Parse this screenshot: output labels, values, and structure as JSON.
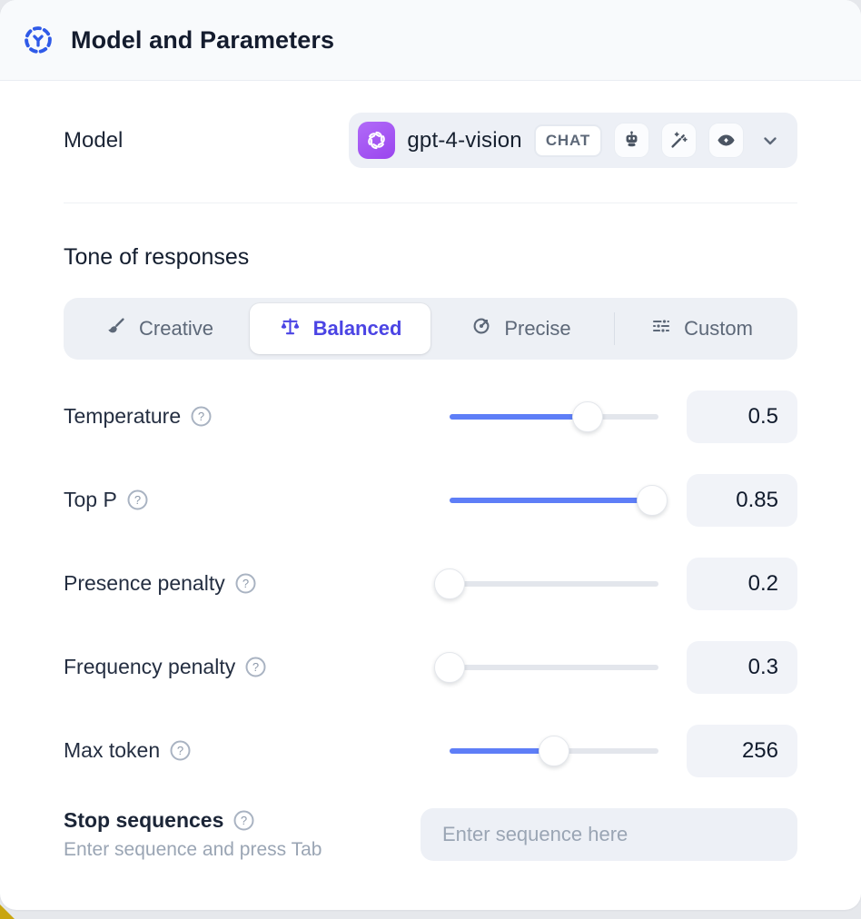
{
  "header": {
    "title": "Model and Parameters"
  },
  "model_row": {
    "label": "Model",
    "selected_model": "gpt-4-vision",
    "type_badge": "CHAT",
    "capability_icons": [
      "robot-icon",
      "magic-wand-icon",
      "vision-eye-icon"
    ],
    "provider_icon": "openai-logo"
  },
  "tone": {
    "heading": "Tone of responses",
    "options": [
      {
        "label": "Creative",
        "icon": "paintbrush-icon",
        "selected": false
      },
      {
        "label": "Balanced",
        "icon": "balance-scale-icon",
        "selected": true
      },
      {
        "label": "Precise",
        "icon": "target-icon",
        "selected": false
      },
      {
        "label": "Custom",
        "icon": "sliders-icon",
        "selected": false
      }
    ]
  },
  "parameters": [
    {
      "label": "Temperature",
      "value": "0.5",
      "slider_percent": 66
    },
    {
      "label": "Top P",
      "value": "0.85",
      "slider_percent": 97
    },
    {
      "label": "Presence penalty",
      "value": "0.2",
      "slider_percent": 0
    },
    {
      "label": "Frequency penalty",
      "value": "0.3",
      "slider_percent": 0
    },
    {
      "label": "Max token",
      "value": "256",
      "slider_percent": 50
    }
  ],
  "stop_sequences": {
    "label": "Stop sequences",
    "hint": "Enter sequence and press Tab",
    "placeholder": "Enter sequence here"
  },
  "colors": {
    "accent_indigo": "#4b44e4",
    "slider_blue": "#5e7ef7",
    "provider_purple": "#a855f7",
    "header_bg": "#f8fafc"
  }
}
